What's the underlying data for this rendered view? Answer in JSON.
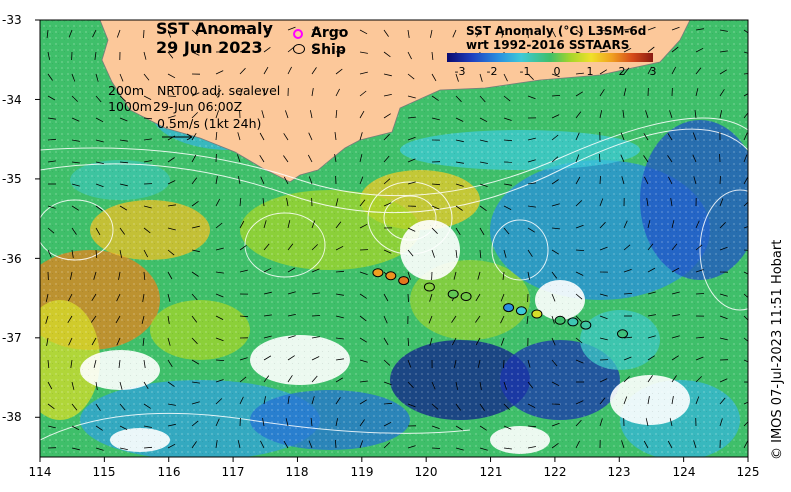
{
  "title": {
    "line1": "SST Anomaly",
    "line2": "29 Jun 2023"
  },
  "legend": {
    "argo": "Argo",
    "ship": "Ship",
    "argo_color": "#ff00ff",
    "ship_color": "#000000"
  },
  "colorbar": {
    "title_line1": "SST Anomaly (°C) L3SM-6d",
    "title_line2": "wrt 1992-2016 SSTAARS",
    "ticks": [
      "-3",
      "-2",
      "-1",
      "0",
      "1",
      "2",
      "3"
    ],
    "range": [
      -3,
      3
    ]
  },
  "info": {
    "depth_200": "200m",
    "depth_1000": "1000m",
    "product": "NRT00 adj. sealevel",
    "time": "29-Jun 06:00Z",
    "vector_scale": "0.5m/s (1kt 24h)"
  },
  "axes": {
    "x_ticks": [
      "114",
      "115",
      "116",
      "117",
      "118",
      "119",
      "120",
      "121",
      "122",
      "123",
      "124",
      "125"
    ],
    "y_ticks": [
      "-33",
      "-34",
      "-35",
      "-36",
      "-37",
      "-38"
    ],
    "lon_range": [
      114,
      125
    ],
    "lat_range": [
      -38.5,
      -33
    ]
  },
  "ships": [
    {
      "lon": 119.25,
      "lat": -36.18,
      "anomaly": 1.8
    },
    {
      "lon": 119.45,
      "lat": -36.22,
      "anomaly": 1.9
    },
    {
      "lon": 119.65,
      "lat": -36.28,
      "anomaly": 2.1
    },
    {
      "lon": 120.05,
      "lat": -36.36,
      "anomaly": 0.4
    },
    {
      "lon": 120.42,
      "lat": -36.45,
      "anomaly": 0.2
    },
    {
      "lon": 120.62,
      "lat": -36.48,
      "anomaly": 0.3
    },
    {
      "lon": 121.28,
      "lat": -36.62,
      "anomaly": -1.2
    },
    {
      "lon": 121.48,
      "lat": -36.66,
      "anomaly": -0.6
    },
    {
      "lon": 121.72,
      "lat": -36.7,
      "anomaly": 1.0
    },
    {
      "lon": 122.08,
      "lat": -36.78,
      "anomaly": 0.0
    },
    {
      "lon": 122.28,
      "lat": -36.8,
      "anomaly": -0.4
    },
    {
      "lon": 122.48,
      "lat": -36.84,
      "anomaly": -0.3
    },
    {
      "lon": 123.05,
      "lat": -36.95,
      "anomaly": -0.1
    }
  ],
  "credit": "© IMOS 07-Jul-2023 11:51 Hobart"
}
